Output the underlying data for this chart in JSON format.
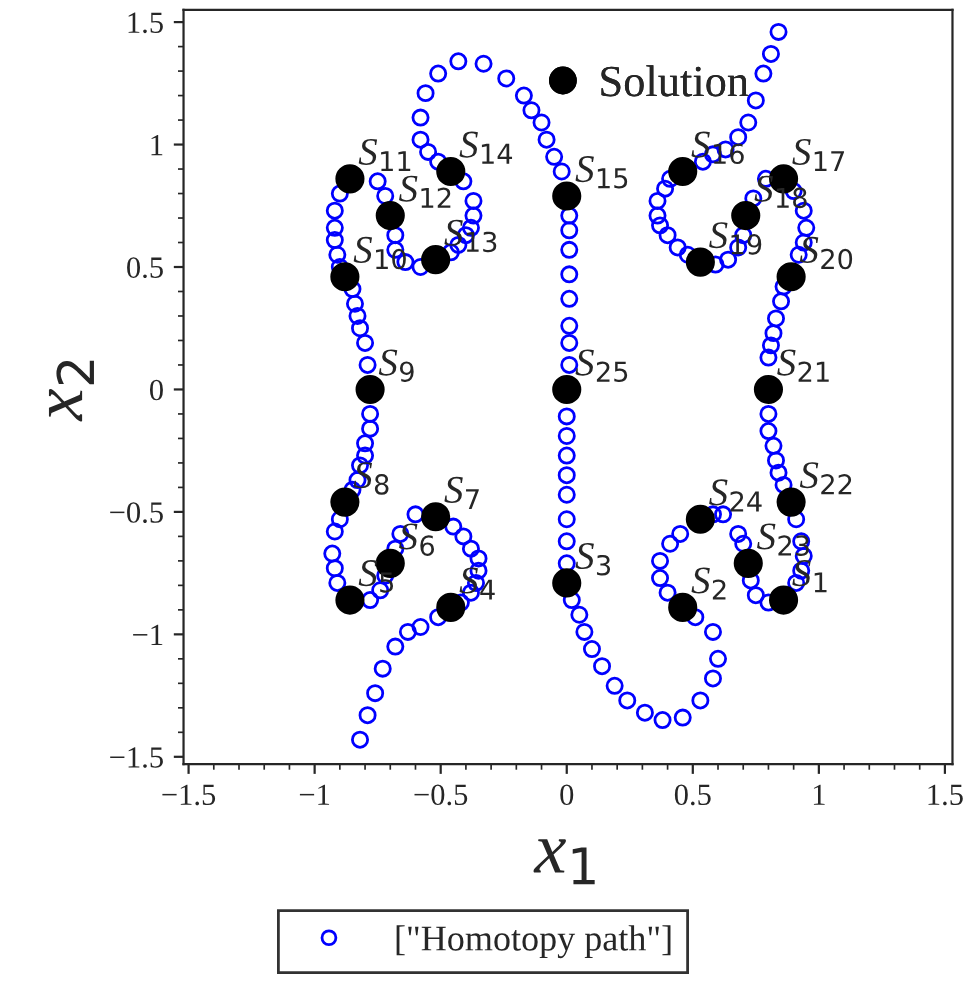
{
  "chart_data": {
    "type": "scatter",
    "xlabel": "x$_{1}$",
    "ylabel": "x$_{2}$",
    "xlim": [
      -1.52,
      1.53
    ],
    "ylim": [
      -1.53,
      1.55
    ],
    "xticks": [
      {
        "value": -1.5,
        "label": "−1.5"
      },
      {
        "value": -1,
        "label": "−1"
      },
      {
        "value": -0.5,
        "label": "−0.5"
      },
      0,
      0.5,
      1,
      1.5
    ],
    "yticks": [
      {
        "value": -1.5,
        "label": "−1.5"
      },
      {
        "value": -1,
        "label": "−1"
      },
      {
        "value": -0.5,
        "label": "−0.5"
      },
      0,
      0.5,
      1,
      1.5
    ],
    "grid": false,
    "legend": "bottom",
    "marker": "circle",
    "series": [
      {
        "name": "[\"Homotopy path\"]",
        "color": "#0000ff",
        "x": [
          -0.43,
          -0.33,
          -0.24,
          -0.17,
          -0.14,
          -0.1,
          -0.08,
          -0.05,
          -0.02,
          -0.51,
          -0.56,
          -0.58,
          -0.58,
          -0.55,
          -0.51,
          -0.41,
          -0.37,
          -0.37,
          -0.38,
          -0.4,
          -0.43,
          -0.46,
          -0.58,
          -0.64,
          -0.68,
          -0.68,
          -0.72,
          -0.75,
          -0.9,
          -0.92,
          -0.92,
          -0.92,
          -0.91,
          -0.9,
          -0.85,
          -0.84,
          -0.83,
          -0.82,
          -0.8,
          -0.79,
          0.01,
          0.01,
          0.01,
          0.01,
          0.01,
          0.01,
          0.01,
          0.01,
          -0.78,
          -0.78,
          -0.8,
          -0.8,
          -0.82,
          -0.83,
          -0.85,
          -0.9,
          -0.92,
          -0.93,
          -0.92,
          -0.91,
          -0.78,
          -0.74,
          -0.72,
          -0.68,
          -0.66,
          -0.6,
          -0.45,
          -0.41,
          -0.38,
          -0.35,
          -0.35,
          -0.36,
          -0.38,
          -0.42,
          -0.51,
          -0.58,
          -0.63,
          -0.68,
          -0.73,
          -0.76,
          -0.79,
          -0.82,
          0,
          0,
          0,
          0,
          0,
          0,
          0,
          0,
          0.02,
          0.05,
          0.07,
          0.1,
          0.14,
          0.19,
          0.24,
          0.31,
          0.38,
          0.46,
          0.53,
          0.58,
          0.6,
          0.58,
          0.51,
          0.4,
          0.37,
          0.37,
          0.41,
          0.45,
          0.58,
          0.62,
          0.8,
          0.8,
          0.82,
          0.83,
          0.84,
          0.86,
          0.91,
          0.93,
          0.94,
          0.93,
          0.91,
          0.8,
          0.75,
          0.73,
          0.7,
          0.68,
          0.84,
          0.81,
          0.78,
          0.75,
          0.72,
          0.68,
          0.63,
          0.58,
          0.54,
          0.41,
          0.39,
          0.36,
          0.36,
          0.37,
          0.4,
          0.44,
          0.48,
          0.59,
          0.64,
          0.68,
          0.7,
          0.74,
          0.79,
          0.9,
          0.94,
          0.95,
          0.94,
          0.92,
          0.86,
          0.85,
          0.83,
          0.82,
          0.81,
          0.8
        ],
        "values": [
          1.34,
          1.33,
          1.27,
          1.2,
          1.14,
          1.09,
          1.02,
          0.95,
          0.89,
          1.29,
          1.21,
          1.11,
          1.02,
          0.97,
          0.93,
          0.85,
          0.77,
          0.71,
          0.66,
          0.63,
          0.59,
          0.56,
          0.5,
          0.52,
          0.57,
          0.63,
          0.79,
          0.85,
          0.8,
          0.73,
          0.66,
          0.61,
          0.55,
          0.5,
          0.41,
          0.35,
          0.3,
          0.25,
          0.19,
          0.1,
          0.71,
          0.65,
          0.57,
          0.47,
          0.37,
          0.26,
          0.19,
          0.1,
          -0.1,
          -0.16,
          -0.22,
          -0.27,
          -0.31,
          -0.37,
          -0.41,
          -0.53,
          -0.58,
          -0.67,
          -0.73,
          -0.79,
          -0.86,
          -0.82,
          -0.76,
          -0.65,
          -0.59,
          -0.51,
          -0.56,
          -0.6,
          -0.65,
          -0.69,
          -0.74,
          -0.79,
          -0.83,
          -0.87,
          -0.93,
          -0.97,
          -0.99,
          -1.05,
          -1.14,
          -1.24,
          -1.33,
          -1.43,
          -0.11,
          -0.19,
          -0.27,
          -0.35,
          -0.43,
          -0.53,
          -0.62,
          -0.71,
          -0.86,
          -0.92,
          -0.99,
          -1.06,
          -1.13,
          -1.21,
          -1.27,
          -1.32,
          -1.35,
          -1.34,
          -1.27,
          -1.18,
          -1.1,
          -0.99,
          -0.93,
          -0.83,
          -0.77,
          -0.7,
          -0.63,
          -0.59,
          -0.51,
          -0.51,
          -0.1,
          -0.17,
          -0.23,
          -0.29,
          -0.34,
          -0.39,
          -0.53,
          -0.62,
          -0.68,
          -0.74,
          -0.79,
          -0.87,
          -0.84,
          -0.78,
          -0.63,
          -0.59,
          1.46,
          1.37,
          1.29,
          1.18,
          1.09,
          1.03,
          0.98,
          0.96,
          0.93,
          0.86,
          0.82,
          0.77,
          0.71,
          0.67,
          0.63,
          0.58,
          0.55,
          0.51,
          0.53,
          0.58,
          0.63,
          0.78,
          0.86,
          0.81,
          0.73,
          0.66,
          0.6,
          0.55,
          0.42,
          0.36,
          0.29,
          0.23,
          0.18,
          0.13
        ]
      },
      {
        "name": "Solution",
        "color": "#000000",
        "x": [
          0.86,
          0.46,
          0,
          -0.46,
          -0.86,
          -0.7,
          -0.52,
          -0.88,
          -0.78,
          -0.88,
          -0.86,
          -0.7,
          -0.52,
          -0.46,
          0,
          0.46,
          0.86,
          0.71,
          0.53,
          0.89,
          0.8,
          0.89,
          0.72,
          0.53,
          0
        ],
        "values": [
          -0.86,
          -0.89,
          -0.79,
          -0.89,
          -0.86,
          -0.71,
          -0.52,
          -0.46,
          0,
          0.46,
          0.86,
          0.71,
          0.53,
          0.89,
          0.79,
          0.89,
          0.86,
          0.71,
          0.52,
          0.46,
          0,
          -0.46,
          -0.71,
          -0.53,
          0
        ]
      }
    ],
    "annotations": [
      {
        "text": "S$_{1}$",
        "x": 0.86,
        "y": -0.86
      },
      {
        "text": "S$_{2}$",
        "x": 0.46,
        "y": -0.89
      },
      {
        "text": "S$_{3}$",
        "x": 0,
        "y": -0.79
      },
      {
        "text": "S$_{4}$",
        "x": -0.46,
        "y": -0.89
      },
      {
        "text": "S$_{5}$",
        "x": -0.86,
        "y": -0.86
      },
      {
        "text": "S$_{6}$",
        "x": -0.7,
        "y": -0.71
      },
      {
        "text": "S$_{7}$",
        "x": -0.52,
        "y": -0.52
      },
      {
        "text": "S$_{8}$",
        "x": -0.88,
        "y": -0.46
      },
      {
        "text": "S$_{9}$",
        "x": -0.78,
        "y": 0
      },
      {
        "text": "S$_{10}$",
        "x": -0.88,
        "y": 0.46
      },
      {
        "text": "S$_{11}$",
        "x": -0.86,
        "y": 0.86
      },
      {
        "text": "S$_{12}$",
        "x": -0.7,
        "y": 0.71
      },
      {
        "text": "S$_{13}$",
        "x": -0.52,
        "y": 0.53
      },
      {
        "text": "S$_{14}$",
        "x": -0.46,
        "y": 0.89
      },
      {
        "text": "S$_{15}$",
        "x": 0,
        "y": 0.79
      },
      {
        "text": "S$_{16}$",
        "x": 0.46,
        "y": 0.89
      },
      {
        "text": "S$_{17}$",
        "x": 0.86,
        "y": 0.86
      },
      {
        "text": "S$_{18}$",
        "x": 0.71,
        "y": 0.71
      },
      {
        "text": "S$_{19}$",
        "x": 0.53,
        "y": 0.52
      },
      {
        "text": "S$_{20}$",
        "x": 0.89,
        "y": 0.46
      },
      {
        "text": "S$_{21}$",
        "x": 0.8,
        "y": 0
      },
      {
        "text": "S$_{22}$",
        "x": 0.89,
        "y": -0.46
      },
      {
        "text": "S$_{23}$",
        "x": 0.72,
        "y": -0.71
      },
      {
        "text": "S$_{24}$",
        "x": 0.53,
        "y": -0.53
      },
      {
        "text": "S$_{25}$",
        "x": 0,
        "y": 0
      }
    ]
  }
}
